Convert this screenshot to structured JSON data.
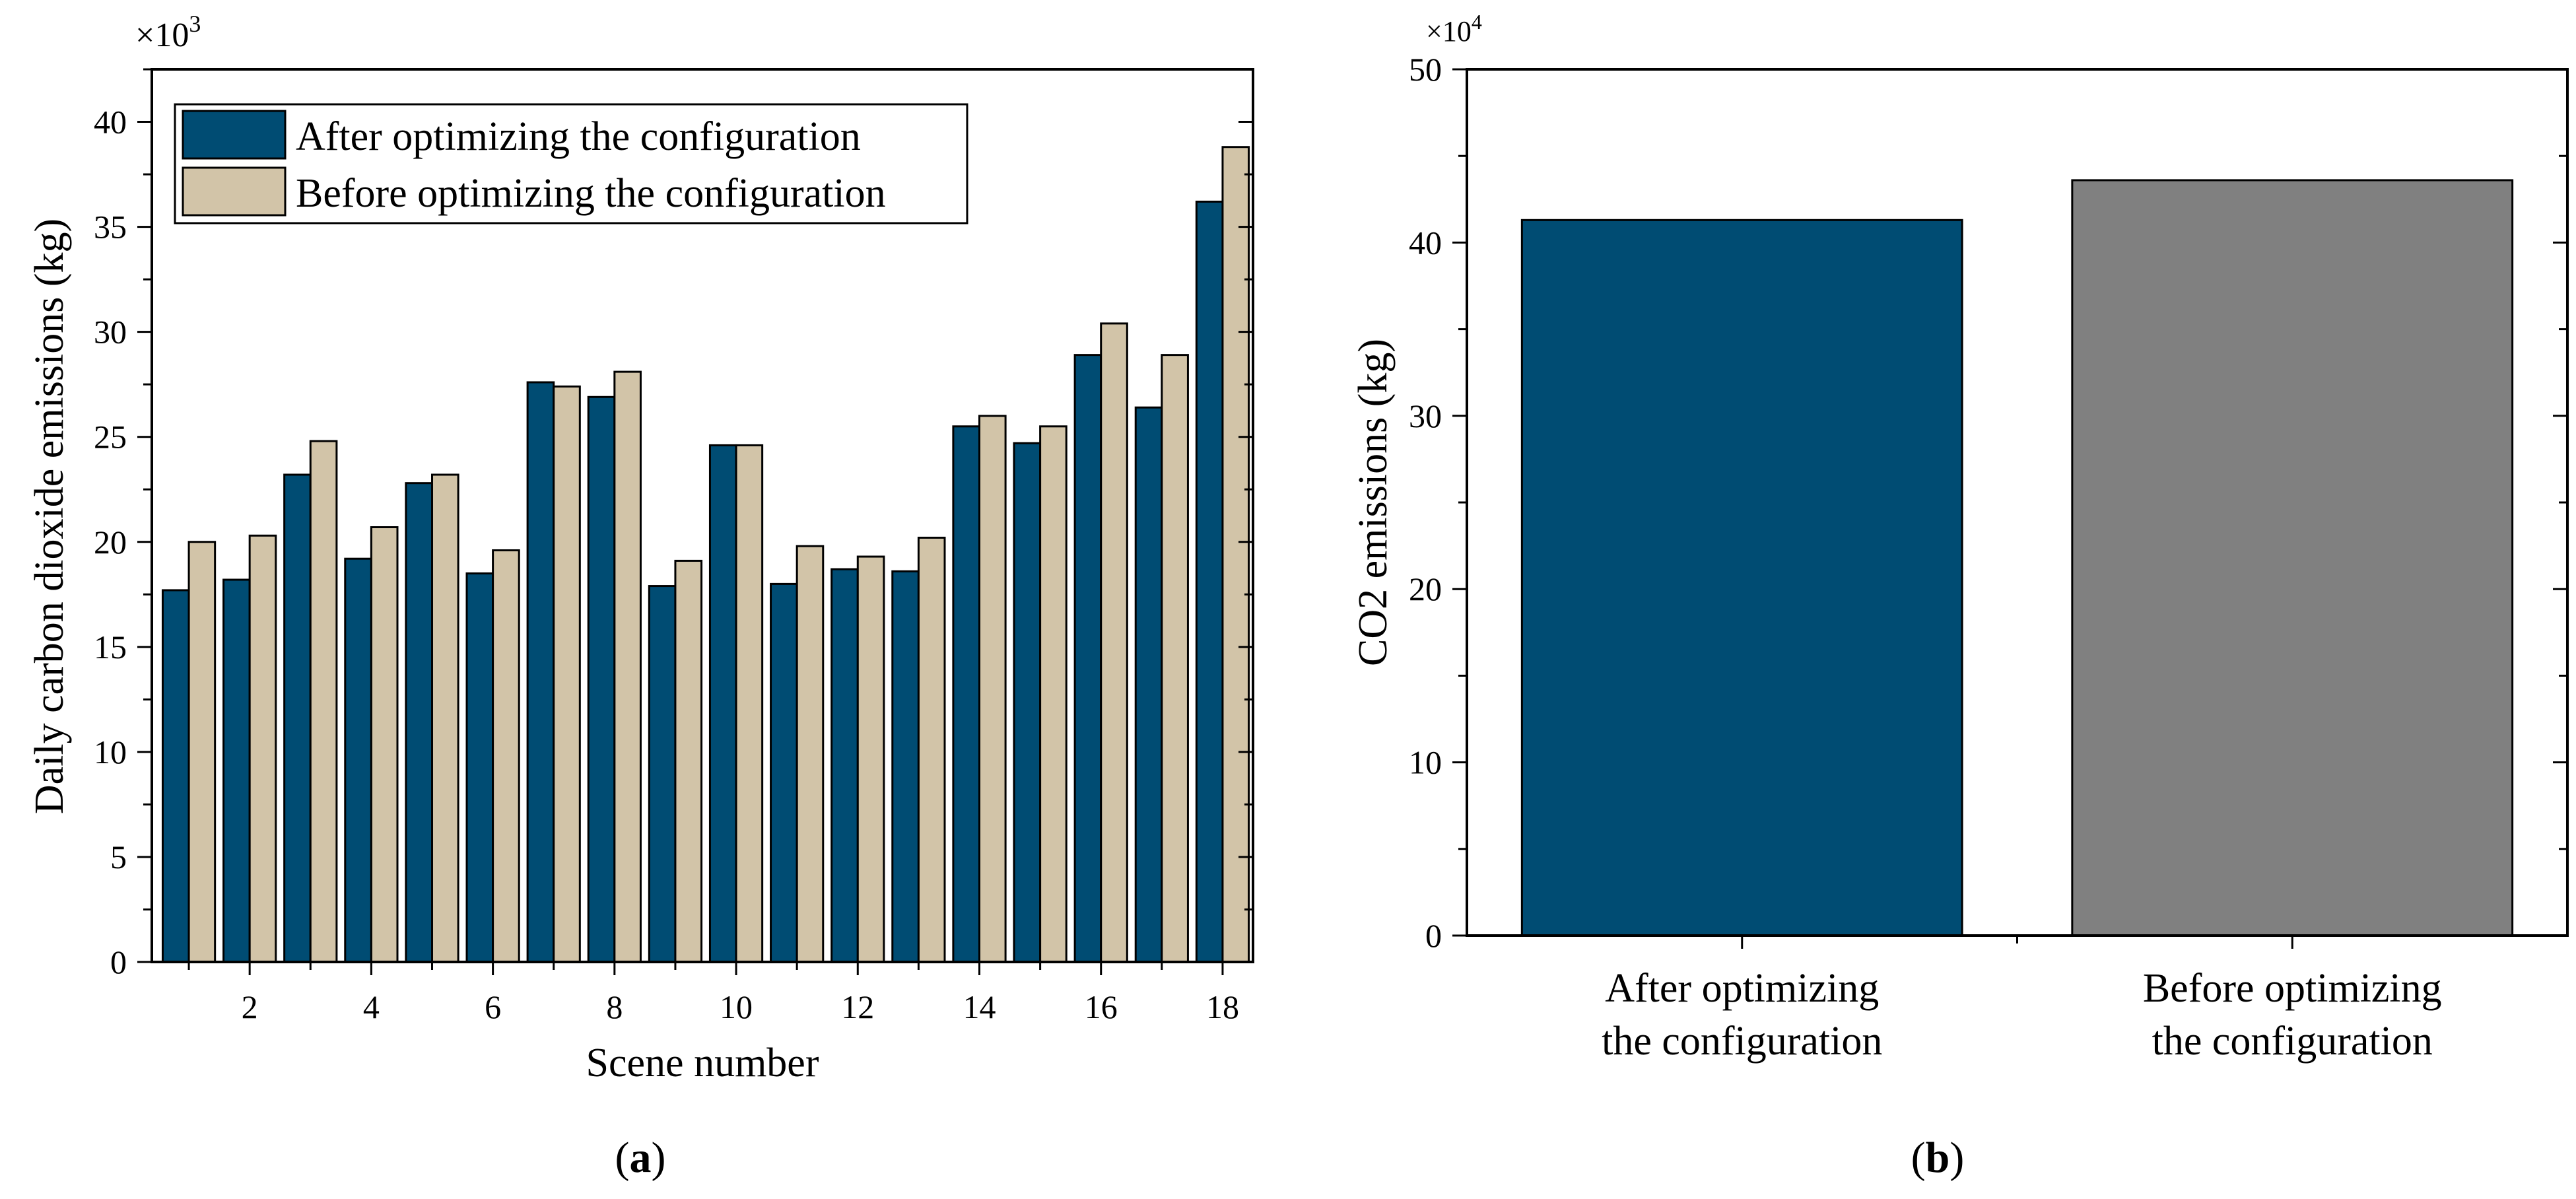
{
  "chart_data": [
    {
      "id": "a",
      "type": "bar",
      "panel_label": "a",
      "multiplier_base": "×10",
      "multiplier_exp": "3",
      "xlabel": "Scene number",
      "ylabel": "Daily carbon dioxide emissions (kg)",
      "ylim": [
        0,
        42.5
      ],
      "yticks": [
        "0",
        "5",
        "10",
        "15",
        "20",
        "25",
        "30",
        "35",
        "40"
      ],
      "xticks": [
        "2",
        "4",
        "6",
        "8",
        "10",
        "12",
        "14",
        "16",
        "18"
      ],
      "categories": [
        1,
        2,
        3,
        4,
        5,
        6,
        7,
        8,
        9,
        10,
        11,
        12,
        13,
        14,
        15,
        16,
        17,
        18
      ],
      "series": [
        {
          "name": "After optimizing the configuration",
          "color": "#004c73",
          "values": [
            17.7,
            18.2,
            23.2,
            19.2,
            22.8,
            18.5,
            27.6,
            26.9,
            17.9,
            24.6,
            18.0,
            18.7,
            18.6,
            25.5,
            24.7,
            28.9,
            26.4,
            36.2
          ]
        },
        {
          "name": "Before optimizing the configuration",
          "color": "#d2c4a8",
          "values": [
            20.0,
            20.3,
            24.8,
            20.7,
            23.2,
            19.6,
            27.4,
            28.1,
            19.1,
            24.6,
            19.8,
            19.3,
            20.2,
            26.0,
            25.5,
            30.4,
            28.9,
            38.8
          ]
        }
      ]
    },
    {
      "id": "b",
      "type": "bar",
      "panel_label": "b",
      "multiplier_base": "×10",
      "multiplier_exp": "4",
      "xlabel": "",
      "ylabel": "CO2 emissions (kg)",
      "ylim": [
        0,
        50
      ],
      "yticks": [
        "0",
        "10",
        "20",
        "30",
        "40",
        "50"
      ],
      "categories": [
        [
          "After optimizing",
          "the configuration"
        ],
        [
          "Before optimizing",
          "the configuration"
        ]
      ],
      "values": [
        41.3,
        43.6
      ],
      "colors": [
        "#004c73",
        "#808080"
      ]
    }
  ]
}
